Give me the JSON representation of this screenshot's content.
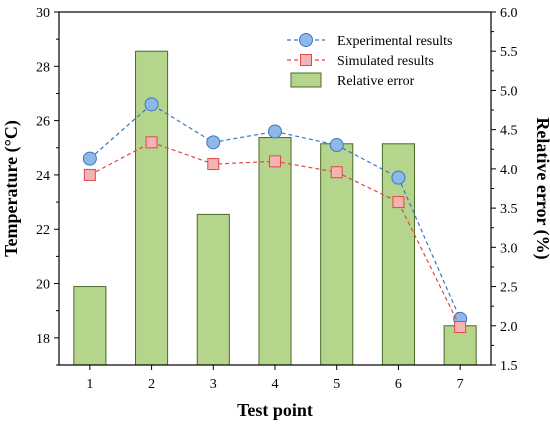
{
  "chart_data": {
    "type": "bar",
    "title": "",
    "xlabel": "Test point",
    "ylabel": "Temperature (°C)",
    "y2label": "Relative error (%)",
    "categories": [
      "1",
      "2",
      "3",
      "4",
      "5",
      "6",
      "7"
    ],
    "ylim": [
      17,
      30
    ],
    "y2lim": [
      1.5,
      6.0
    ],
    "y_ticks": [
      "18",
      "20",
      "22",
      "24",
      "26",
      "28",
      "30"
    ],
    "y2_ticks": [
      "1.5",
      "2.0",
      "2.5",
      "3.0",
      "3.5",
      "4.0",
      "4.5",
      "5.0",
      "5.5",
      "6.0"
    ],
    "legend_position": "top-right",
    "series": [
      {
        "name": "Experimental results",
        "type": "line",
        "axis": "left",
        "values": [
          24.6,
          26.6,
          25.2,
          25.6,
          25.1,
          23.9,
          18.7
        ],
        "color": "#3b78c2",
        "marker_fill": "#8fb7e8"
      },
      {
        "name": "Simulated results",
        "type": "line",
        "axis": "left",
        "values": [
          24.0,
          25.2,
          24.4,
          24.5,
          24.1,
          23.0,
          18.4
        ],
        "color": "#e04848",
        "marker_fill": "#f5b4b4"
      },
      {
        "name": "Relative error",
        "type": "bar",
        "axis": "right",
        "values": [
          2.5,
          5.5,
          3.42,
          4.4,
          4.32,
          4.32,
          2.0
        ],
        "color": "#b5d48c",
        "edge_color": "#4a6a2a"
      }
    ]
  }
}
